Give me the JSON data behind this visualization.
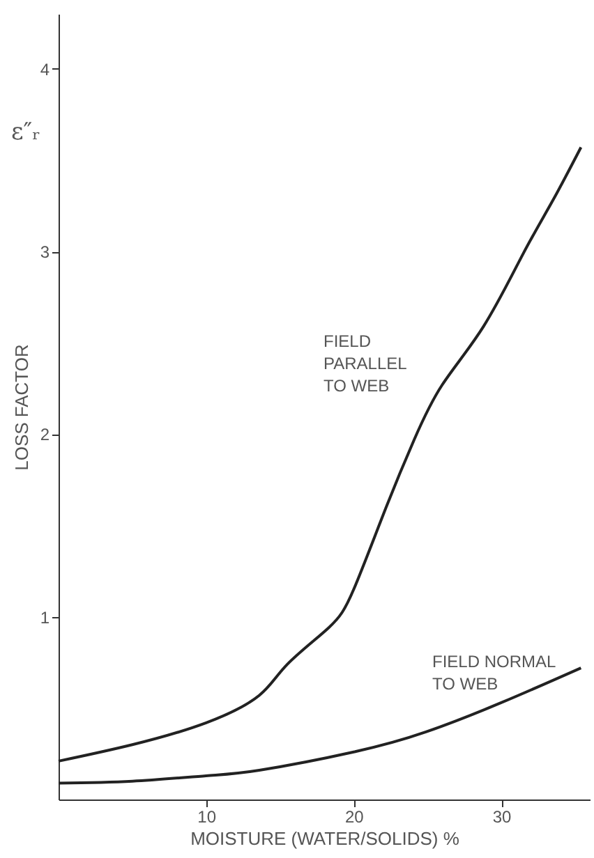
{
  "chart_data": {
    "type": "line",
    "xlabel": "MOISTURE (WATER/SOLIDS) %",
    "ylabel": "LOSS FACTOR",
    "annotations": [
      "ε″ᵣ"
    ],
    "xlim": [
      0,
      36
    ],
    "ylim": [
      0,
      4.3
    ],
    "xticks": [
      10,
      20,
      30
    ],
    "yticks": [
      1,
      2,
      3,
      4
    ],
    "grid": false,
    "marker": "none",
    "line_style": "solid",
    "series": [
      {
        "name": "FIELD PARALLEL TO WEB",
        "color": "#222222",
        "x": [
          0,
          5,
          10,
          13.6,
          15.5,
          18.3,
          20,
          22.2,
          24.1,
          26,
          28.8,
          31.5,
          33.5,
          35.4
        ],
        "values": [
          0.21,
          0.3,
          0.42,
          0.57,
          0.74,
          0.94,
          1.15,
          1.6,
          1.97,
          2.27,
          2.59,
          2.99,
          3.28,
          3.57
        ]
      },
      {
        "name": "FIELD NORMAL TO WEB",
        "color": "#222222",
        "x": [
          0,
          5,
          10,
          13.6,
          20,
          24.9,
          30,
          35.4
        ],
        "values": [
          0.09,
          0.1,
          0.13,
          0.16,
          0.26,
          0.37,
          0.53,
          0.72
        ]
      }
    ]
  }
}
